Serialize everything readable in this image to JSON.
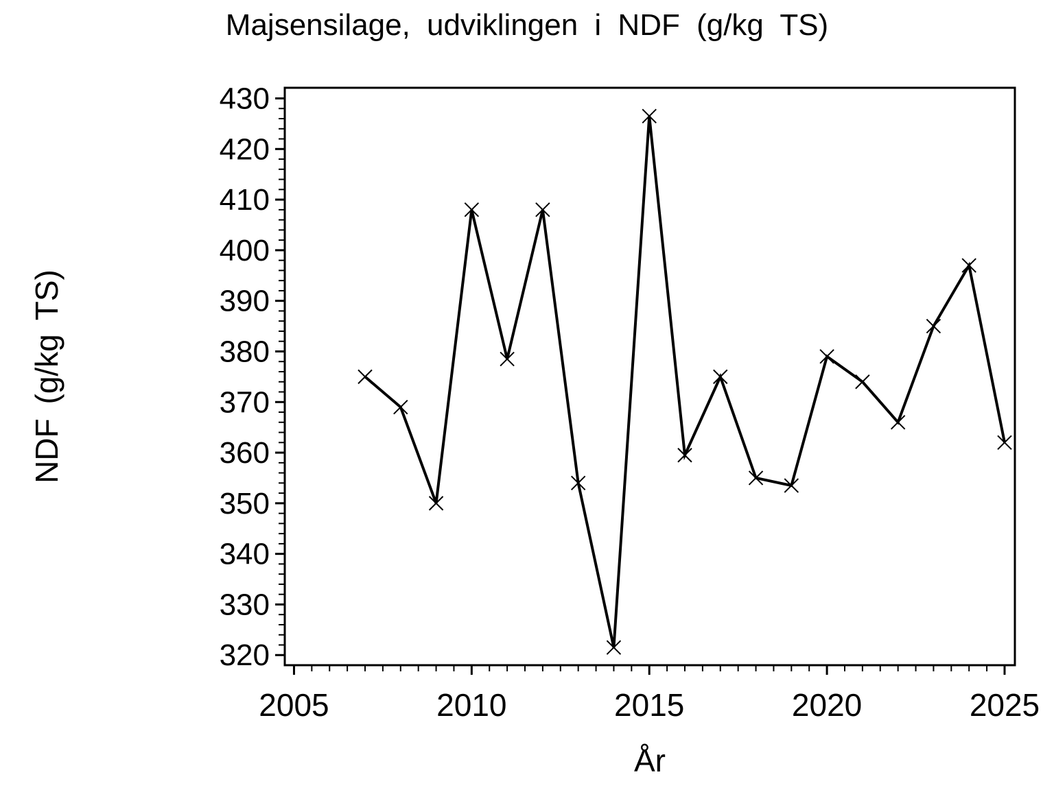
{
  "title": "Majsensilage, udviklingen i NDF (g/kg TS)",
  "chart_data": {
    "type": "line",
    "title": "Majsensilage, udviklingen i NDF (g/kg TS)",
    "xlabel": "År",
    "ylabel": "NDF (g/kg TS)",
    "x": [
      2007,
      2008,
      2009,
      2010,
      2011,
      2012,
      2013,
      2014,
      2015,
      2016,
      2017,
      2018,
      2019,
      2020,
      2021,
      2022,
      2023,
      2024,
      2025
    ],
    "y": [
      375,
      369,
      350,
      408,
      378.5,
      408,
      354,
      321.5,
      426.5,
      359.5,
      375,
      355,
      353.5,
      379,
      374,
      366,
      385,
      397,
      362
    ],
    "series": [
      {
        "name": "NDF (g/kg TS)",
        "marker": "x",
        "color": "#000000"
      }
    ],
    "x_axis": {
      "range": [
        2004.74,
        2025.29
      ],
      "major_ticks": [
        2005,
        2010,
        2015,
        2020,
        2025
      ],
      "minor_step": 0.5
    },
    "y_axis": {
      "range": [
        318.0,
        432.1
      ],
      "major_ticks": [
        320,
        330,
        340,
        350,
        360,
        370,
        380,
        390,
        400,
        410,
        420,
        430
      ],
      "minor_step": 2
    },
    "grid": false,
    "legend": false,
    "frame": "box",
    "background": "#ffffff",
    "foreground": "#000000"
  }
}
